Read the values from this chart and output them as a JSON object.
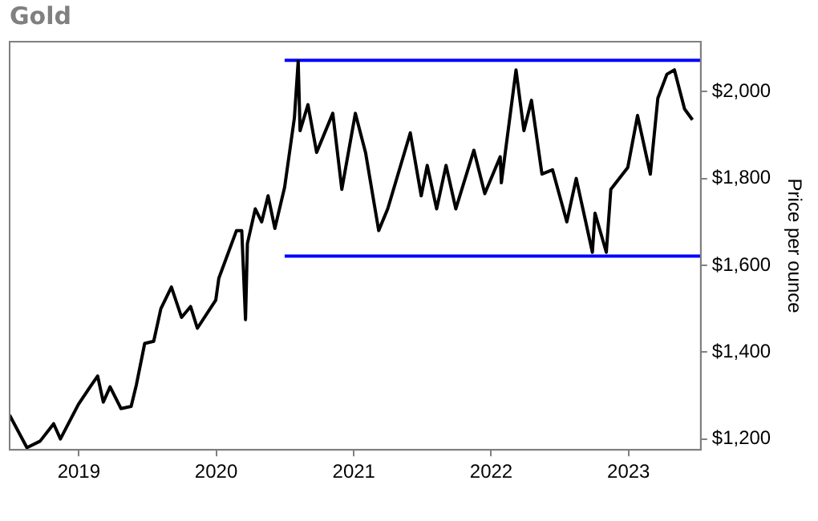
{
  "chart_data": {
    "type": "line",
    "title": "Gold",
    "ylabel": "Price per ounce",
    "xlim": [
      "2018-07-01",
      "2023-07-12"
    ],
    "ylim": [
      1175,
      2115
    ],
    "xticks": [
      "2019",
      "2020",
      "2021",
      "2022",
      "2023"
    ],
    "yticks": [
      {
        "value": 1200,
        "label": "$1,200"
      },
      {
        "value": 1400,
        "label": "$1,400"
      },
      {
        "value": 1600,
        "label": "$1,600"
      },
      {
        "value": 1800,
        "label": "$1,800"
      },
      {
        "value": 2000,
        "label": "$2,000"
      }
    ],
    "grid": false,
    "legend": false,
    "marker": "none",
    "line_style": "solid",
    "series": [
      {
        "color": "#000000",
        "x": [
          "2018-07-01",
          "2018-08-16",
          "2018-09-20",
          "2018-10-26",
          "2018-11-13",
          "2018-12-31",
          "2019-01-31",
          "2019-02-20",
          "2019-03-07",
          "2019-03-25",
          "2019-04-23",
          "2019-05-20",
          "2019-06-03",
          "2019-06-25",
          "2019-07-19",
          "2019-08-07",
          "2019-09-04",
          "2019-10-01",
          "2019-10-25",
          "2019-11-12",
          "2019-12-31",
          "2020-01-08",
          "2020-02-24",
          "2020-03-09",
          "2020-03-19",
          "2020-03-24",
          "2020-04-14",
          "2020-05-01",
          "2020-05-18",
          "2020-06-05",
          "2020-07-01",
          "2020-07-27",
          "2020-08-06",
          "2020-08-11",
          "2020-09-01",
          "2020-09-24",
          "2020-11-06",
          "2020-11-30",
          "2021-01-05",
          "2021-02-01",
          "2021-03-08",
          "2021-04-01",
          "2021-05-31",
          "2021-06-29",
          "2021-07-15",
          "2021-08-09",
          "2021-09-03",
          "2021-09-29",
          "2021-11-16",
          "2021-12-15",
          "2022-01-25",
          "2022-01-28",
          "2022-03-08",
          "2022-03-29",
          "2022-04-18",
          "2022-05-16",
          "2022-06-13",
          "2022-07-21",
          "2022-08-15",
          "2022-09-27",
          "2022-10-04",
          "2022-11-03",
          "2022-11-15",
          "2022-12-30",
          "2023-01-25",
          "2023-02-28",
          "2023-03-20",
          "2023-04-13",
          "2023-05-03",
          "2023-05-30",
          "2023-06-20"
        ],
        "values": [
          1255,
          1180,
          1195,
          1235,
          1200,
          1280,
          1320,
          1345,
          1285,
          1320,
          1270,
          1275,
          1325,
          1420,
          1425,
          1500,
          1550,
          1480,
          1505,
          1455,
          1520,
          1570,
          1680,
          1680,
          1475,
          1650,
          1730,
          1700,
          1760,
          1685,
          1780,
          1940,
          2070,
          1910,
          1970,
          1860,
          1950,
          1775,
          1950,
          1860,
          1680,
          1730,
          1905,
          1760,
          1830,
          1730,
          1830,
          1730,
          1865,
          1765,
          1850,
          1790,
          2050,
          1910,
          1980,
          1810,
          1820,
          1700,
          1800,
          1630,
          1720,
          1630,
          1775,
          1825,
          1945,
          1810,
          1985,
          2040,
          2050,
          1960,
          1935
        ]
      },
      {
        "color": "#0000ff",
        "x": [
          "2020-07-01",
          "2023-07-12"
        ],
        "values": [
          2072,
          2072
        ]
      },
      {
        "color": "#0000ff",
        "x": [
          "2020-07-01",
          "2023-07-12"
        ],
        "values": [
          1621,
          1621
        ]
      }
    ]
  }
}
